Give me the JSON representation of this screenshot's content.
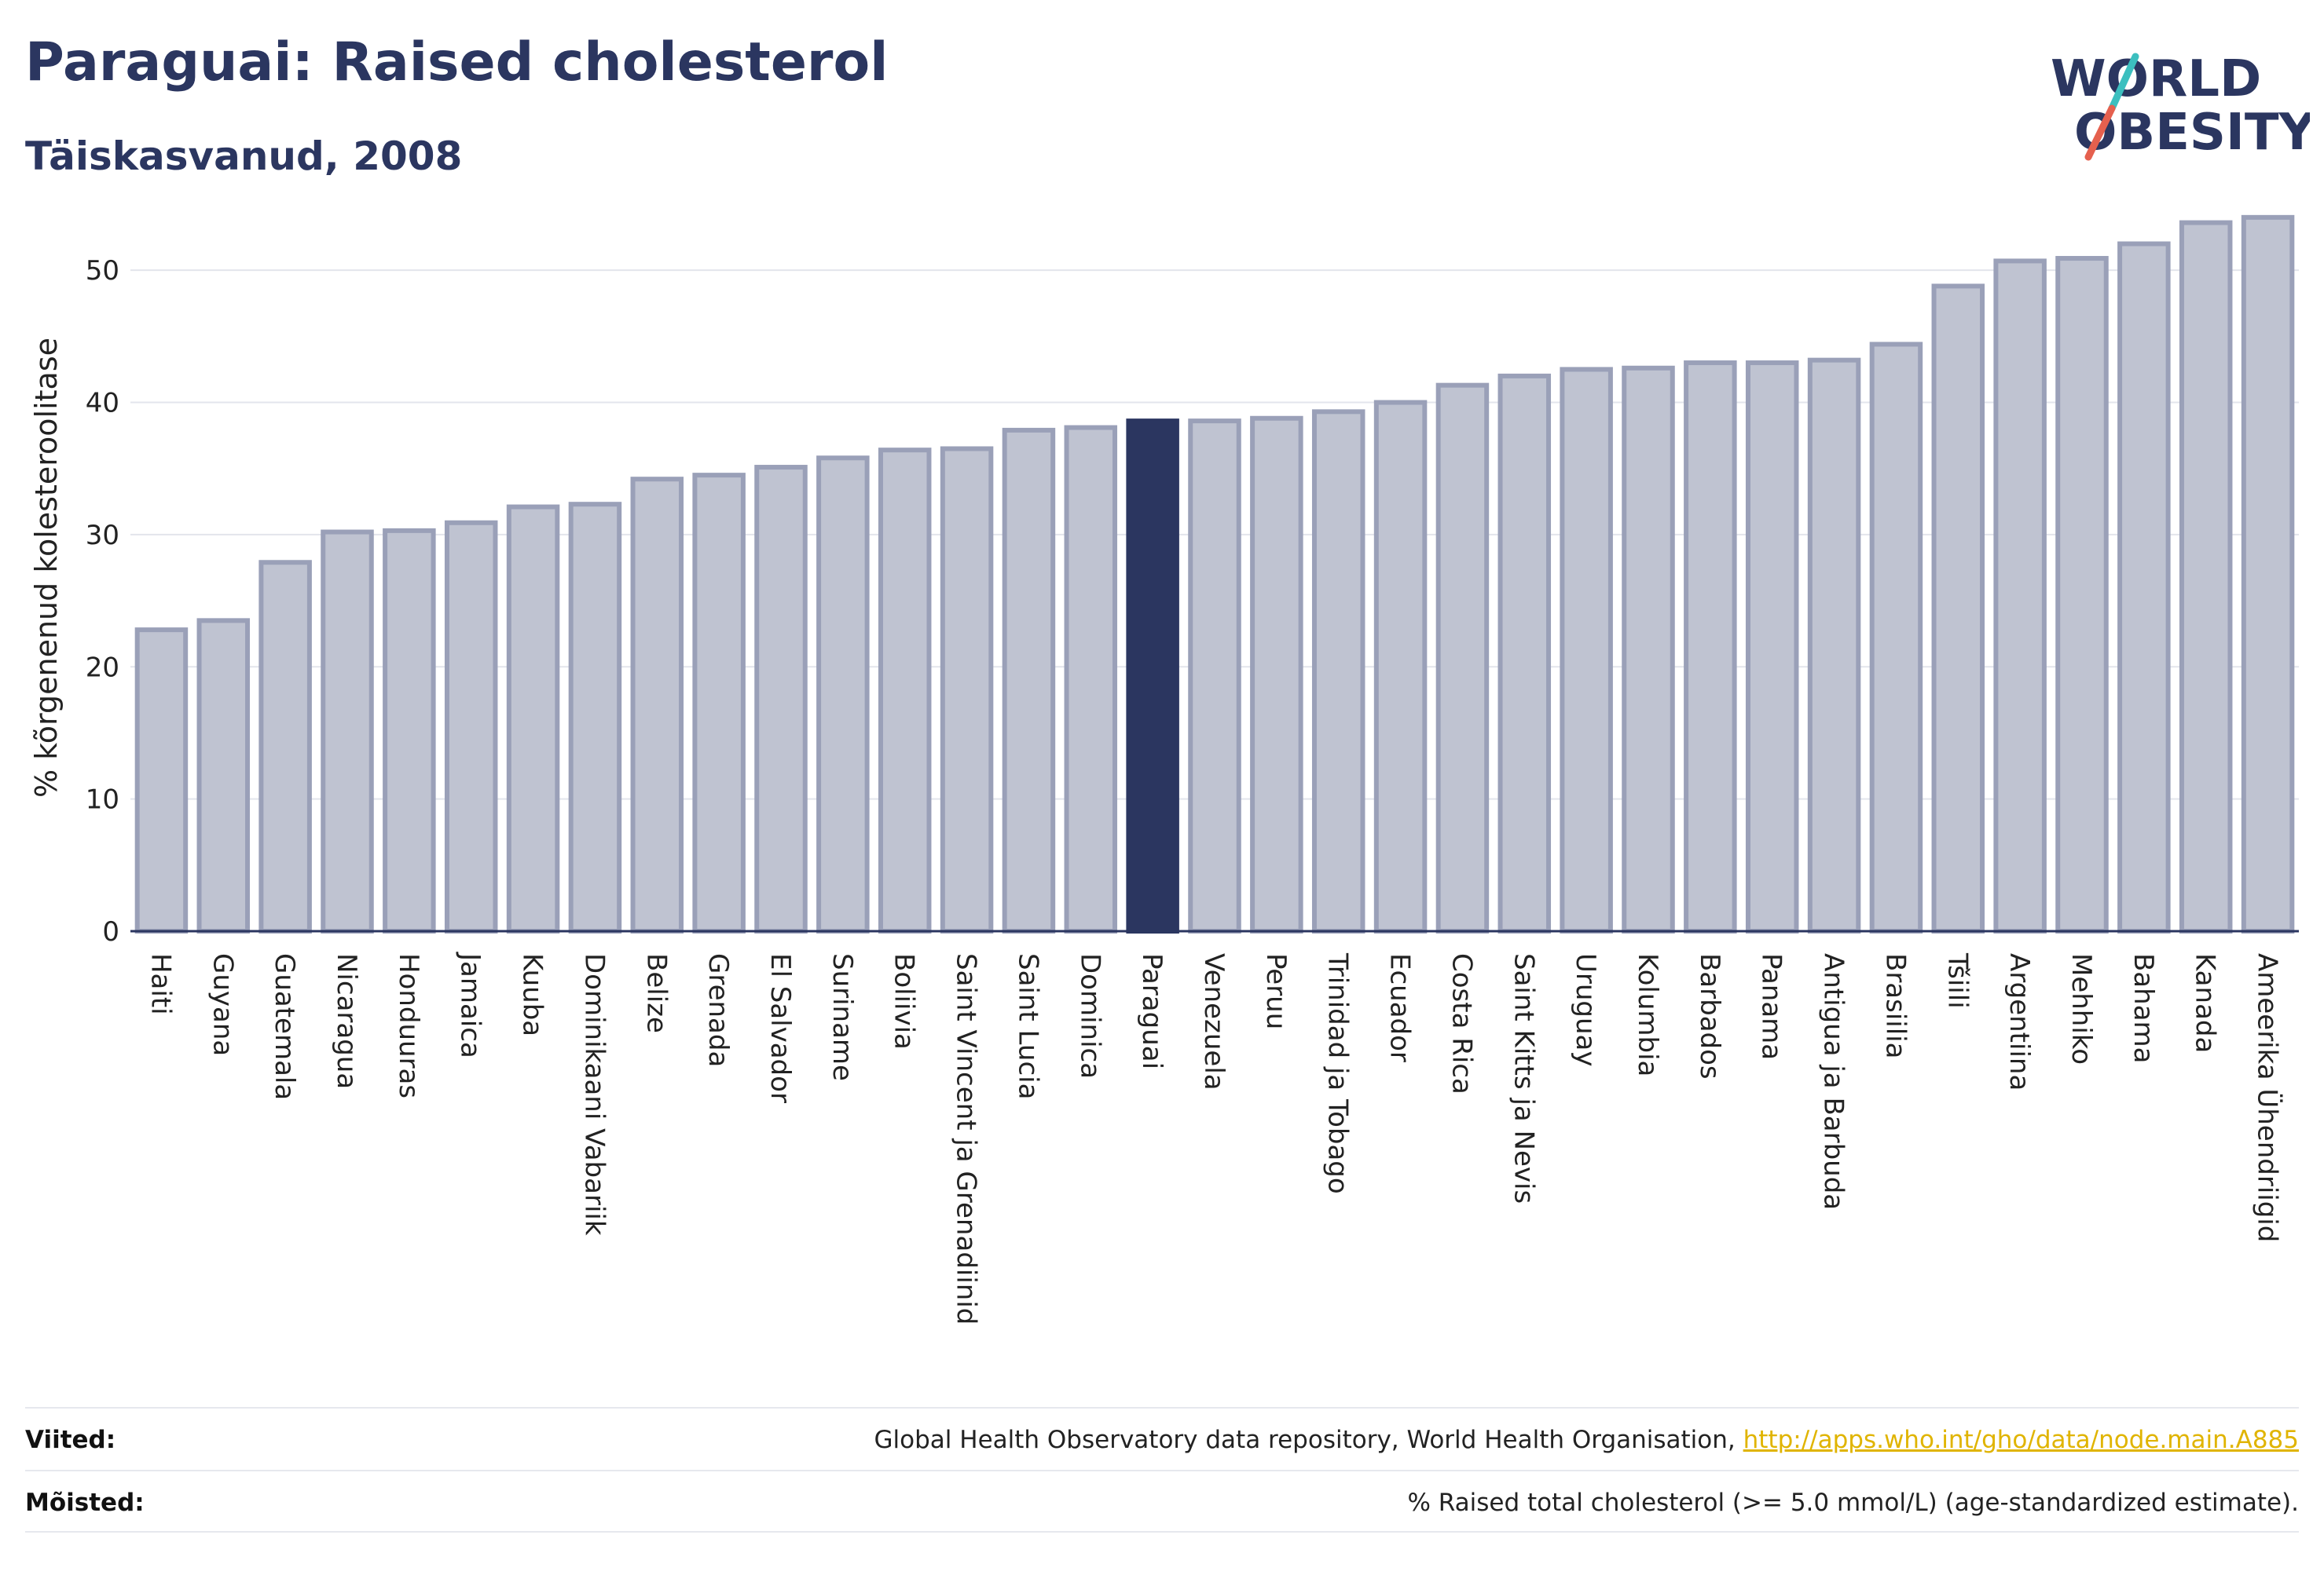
{
  "header": {
    "title": "Paraguai: Raised cholesterol",
    "subtitle": "Täiskasvanud, 2008"
  },
  "logo": {
    "line1": "WORLD",
    "line2": "OBESITY",
    "colors": {
      "text": "#2b3660",
      "slash_teal": "#3cbfbf",
      "slash_red": "#e5604e"
    }
  },
  "chart_data": {
    "type": "bar",
    "ylabel": "% kõrgenenud kolesteroolitase",
    "ylim": [
      0,
      55
    ],
    "yticks": [
      0,
      10,
      20,
      30,
      40,
      50
    ],
    "grid": true,
    "highlight": "Paraguai",
    "colors": {
      "bar": "#bfc3d1",
      "bar_edge": "#9aa0b8",
      "highlight": "#2b3660",
      "grid": "#e3e5ec",
      "axis": "#2b3660"
    },
    "categories": [
      "Haiti",
      "Guyana",
      "Guatemala",
      "Nicaragua",
      "Honduuras",
      "Jamaica",
      "Kuuba",
      "Dominikaani Vabariik",
      "Belize",
      "Grenada",
      "El Salvador",
      "Suriname",
      "Boliivia",
      "Saint Vincent ja Grenadiinid",
      "Saint Lucia",
      "Dominica",
      "Paraguai",
      "Venezuela",
      "Peruu",
      "Trinidad ja Tobago",
      "Ecuador",
      "Costa Rica",
      "Saint Kitts ja Nevis",
      "Uruguay",
      "Kolumbia",
      "Barbados",
      "Panama",
      "Antigua ja Barbuda",
      "Brasiilia",
      "Tšiili",
      "Argentiina",
      "Mehhiko",
      "Bahama",
      "Kanada",
      "Ameerika Ühendriigid"
    ],
    "values": [
      22.8,
      23.5,
      27.9,
      30.2,
      30.3,
      30.9,
      32.1,
      32.3,
      34.2,
      34.5,
      35.1,
      35.8,
      36.4,
      36.5,
      37.9,
      38.1,
      38.6,
      38.6,
      38.8,
      39.3,
      40.0,
      41.3,
      42.0,
      42.5,
      42.6,
      43.0,
      43.0,
      43.2,
      44.4,
      48.8,
      50.7,
      50.9,
      52.0,
      53.6,
      54.0
    ]
  },
  "footer": {
    "sources_label": "Viited:",
    "sources_text": "Global Health Observatory data repository, World Health Organisation,",
    "sources_link": "http://apps.who.int/gho/data/node.main.A885",
    "definitions_label": "Mõisted:",
    "definitions_text": "% Raised total cholesterol (>= 5.0 mmol/L) (age-standardized estimate)."
  }
}
